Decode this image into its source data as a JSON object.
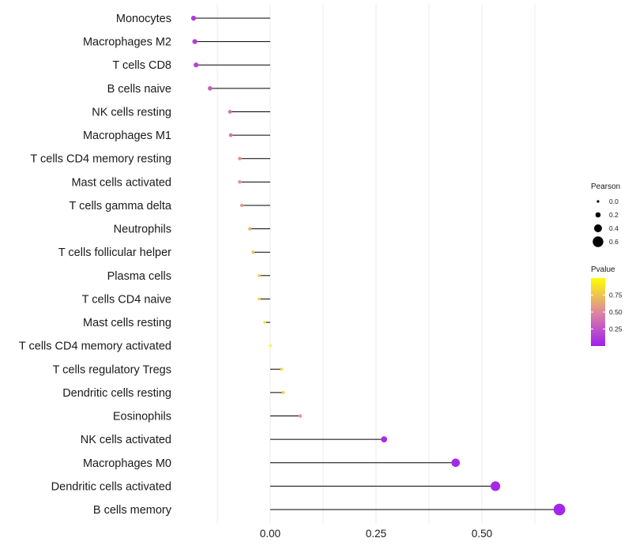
{
  "chart_data": {
    "type": "lollipop",
    "title": "",
    "xlabel": "",
    "ylabel": "",
    "xlim": [
      -0.125,
      0.69
    ],
    "xticks": [
      0.0,
      0.25,
      0.5
    ],
    "xtick_labels": [
      "0.00",
      "0.25",
      "0.50"
    ],
    "minor_gridlines": [
      -0.125,
      0.125,
      0.375,
      0.625
    ],
    "grid": true,
    "categories": [
      "Monocytes",
      "Macrophages M2",
      "T cells CD8",
      "B cells naive",
      "NK cells resting",
      "Macrophages M1",
      "T cells CD4 memory resting",
      "Mast cells activated",
      "T cells gamma delta",
      "Neutrophils",
      "T cells follicular helper",
      "Plasma cells",
      "T cells CD4 naive",
      "Mast cells resting",
      "T cells CD4 memory activated",
      "T cells regulatory  Tregs ",
      "Dendritic cells resting",
      "Eosinophils",
      "NK cells activated",
      "Macrophages M0",
      "Dendritic cells activated",
      "B cells memory"
    ],
    "values": [
      -0.181,
      -0.178,
      -0.175,
      -0.142,
      -0.095,
      -0.093,
      -0.072,
      -0.072,
      -0.067,
      -0.048,
      -0.04,
      -0.026,
      -0.026,
      -0.013,
      0.0,
      0.027,
      0.031,
      0.071,
      0.269,
      0.438,
      0.532,
      0.683
    ],
    "pvalues": [
      0.12,
      0.15,
      0.17,
      0.3,
      0.4,
      0.42,
      0.55,
      0.55,
      0.58,
      0.66,
      0.72,
      0.8,
      0.8,
      0.9,
      0.99,
      0.84,
      0.82,
      0.58,
      0.06,
      0.04,
      0.04,
      0.03
    ],
    "series_label": "Pearson",
    "legend": {
      "size": {
        "title": "Pearson",
        "breaks": [
          0.0,
          0.2,
          0.4,
          0.6
        ],
        "labels": [
          "0.0",
          "0.2",
          "0.4",
          "0.6"
        ]
      },
      "color": {
        "title": "Pvalue",
        "range": [
          0.0,
          1.0
        ],
        "breaks": [
          0.25,
          0.5,
          0.75
        ],
        "labels": [
          "0.25",
          "0.50",
          "0.75"
        ],
        "low_color": "#a020f0",
        "mid_color": "#de879e",
        "high_color": "#ffff00"
      },
      "placement": "right"
    }
  }
}
